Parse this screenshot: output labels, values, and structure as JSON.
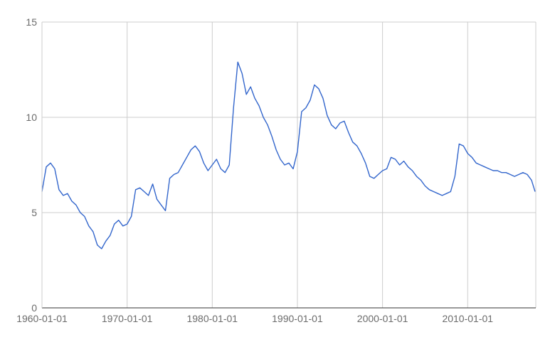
{
  "chart_data": {
    "type": "line",
    "title": "",
    "xlabel": "",
    "ylabel": "",
    "x_range": [
      "1960-01-01",
      "2018-01-01"
    ],
    "ylim": [
      0,
      15
    ],
    "grid": true,
    "y_ticks": [
      {
        "value": 0,
        "label": "0"
      },
      {
        "value": 5,
        "label": "5"
      },
      {
        "value": 10,
        "label": "10"
      },
      {
        "value": 15,
        "label": "15"
      }
    ],
    "x_ticks": [
      {
        "value": "1960-01-01",
        "label": "1960-01-01"
      },
      {
        "value": "1970-01-01",
        "label": "1970-01-01"
      },
      {
        "value": "1980-01-01",
        "label": "1980-01-01"
      },
      {
        "value": "1990-01-01",
        "label": "1990-01-01"
      },
      {
        "value": "2000-01-01",
        "label": "2000-01-01"
      },
      {
        "value": "2010-01-01",
        "label": "2010-01-01"
      }
    ],
    "line_color": "#3366cc",
    "series": [
      {
        "x": [
          "1960-01-01",
          "1960-07-01",
          "1961-01-01",
          "1961-07-01",
          "1962-01-01",
          "1962-07-01",
          "1963-01-01",
          "1963-07-01",
          "1964-01-01",
          "1964-07-01",
          "1965-01-01",
          "1965-07-01",
          "1966-01-01",
          "1966-07-01",
          "1967-01-01",
          "1967-07-01",
          "1968-01-01",
          "1968-07-01",
          "1969-01-01",
          "1969-07-01",
          "1970-01-01",
          "1970-07-01",
          "1971-01-01",
          "1971-07-01",
          "1972-01-01",
          "1972-07-01",
          "1973-01-01",
          "1973-07-01",
          "1974-01-01",
          "1974-07-01",
          "1975-01-01",
          "1975-07-01",
          "1976-01-01",
          "1976-07-01",
          "1977-01-01",
          "1977-07-01",
          "1978-01-01",
          "1978-07-01",
          "1979-01-01",
          "1979-07-01",
          "1980-01-01",
          "1980-07-01",
          "1981-01-01",
          "1981-07-01",
          "1982-01-01",
          "1982-07-01",
          "1983-01-01",
          "1983-07-01",
          "1984-01-01",
          "1984-07-01",
          "1985-01-01",
          "1985-07-01",
          "1986-01-01",
          "1986-07-01",
          "1987-01-01",
          "1987-07-01",
          "1988-01-01",
          "1988-07-01",
          "1989-01-01",
          "1989-07-01",
          "1990-01-01",
          "1990-07-01",
          "1991-01-01",
          "1991-07-01",
          "1992-01-01",
          "1992-07-01",
          "1993-01-01",
          "1993-07-01",
          "1994-01-01",
          "1994-07-01",
          "1995-01-01",
          "1995-07-01",
          "1996-01-01",
          "1996-07-01",
          "1997-01-01",
          "1997-07-01",
          "1998-01-01",
          "1998-07-01",
          "1999-01-01",
          "1999-07-01",
          "2000-01-01",
          "2000-07-01",
          "2001-01-01",
          "2001-07-01",
          "2002-01-01",
          "2002-07-01",
          "2003-01-01",
          "2003-07-01",
          "2004-01-01",
          "2004-07-01",
          "2005-01-01",
          "2005-07-01",
          "2006-01-01",
          "2006-07-01",
          "2007-01-01",
          "2007-07-01",
          "2008-01-01",
          "2008-07-01",
          "2009-01-01",
          "2009-07-01",
          "2010-01-01",
          "2010-07-01",
          "2011-01-01",
          "2011-07-01",
          "2012-01-01",
          "2012-07-01",
          "2013-01-01",
          "2013-07-01",
          "2014-01-01",
          "2014-07-01",
          "2015-01-01",
          "2015-07-01",
          "2016-01-01",
          "2016-07-01",
          "2017-01-01",
          "2017-07-01",
          "2017-12-01"
        ],
        "values": [
          6.1,
          7.4,
          7.6,
          7.3,
          6.2,
          5.9,
          6.0,
          5.6,
          5.4,
          5.0,
          4.8,
          4.3,
          4.0,
          3.3,
          3.1,
          3.5,
          3.8,
          4.4,
          4.6,
          4.3,
          4.4,
          4.8,
          6.2,
          6.3,
          6.1,
          5.9,
          6.5,
          5.7,
          5.4,
          5.1,
          6.8,
          7.0,
          7.1,
          7.5,
          7.9,
          8.3,
          8.5,
          8.2,
          7.6,
          7.2,
          7.5,
          7.8,
          7.3,
          7.1,
          7.5,
          10.5,
          12.9,
          12.3,
          11.2,
          11.6,
          11.0,
          10.6,
          10.0,
          9.6,
          9.0,
          8.3,
          7.8,
          7.5,
          7.6,
          7.3,
          8.2,
          10.3,
          10.5,
          10.9,
          11.7,
          11.5,
          11.0,
          10.1,
          9.6,
          9.4,
          9.7,
          9.8,
          9.2,
          8.7,
          8.5,
          8.1,
          7.6,
          6.9,
          6.8,
          7.0,
          7.2,
          7.3,
          7.9,
          7.8,
          7.5,
          7.7,
          7.4,
          7.2,
          6.9,
          6.7,
          6.4,
          6.2,
          6.1,
          6.0,
          5.9,
          6.0,
          6.1,
          6.9,
          8.6,
          8.5,
          8.1,
          7.9,
          7.6,
          7.5,
          7.4,
          7.3,
          7.2,
          7.2,
          7.1,
          7.1,
          7.0,
          6.9,
          7.0,
          7.1,
          7.0,
          6.7,
          6.1
        ]
      }
    ]
  }
}
